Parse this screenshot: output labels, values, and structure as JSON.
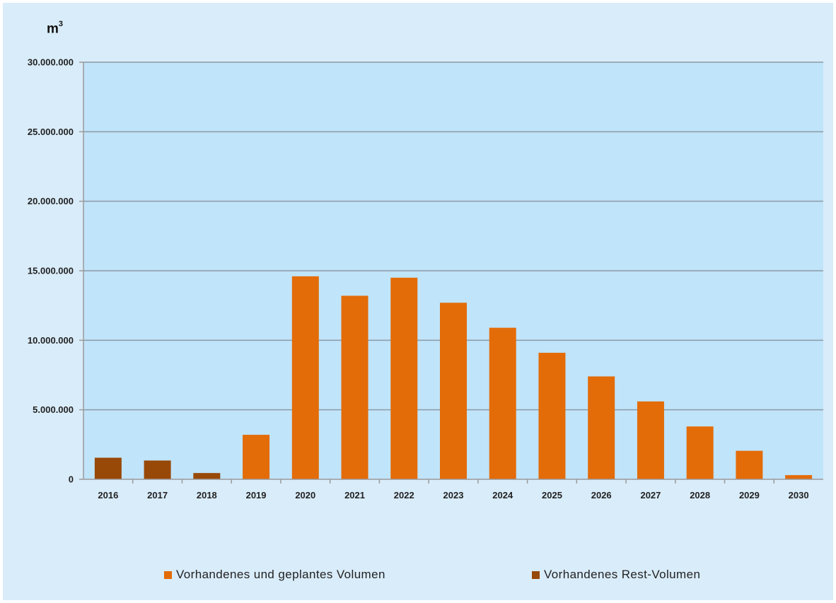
{
  "chart_data": {
    "type": "bar",
    "ylabel": "m",
    "ylabel_superscript": "3",
    "ylim": [
      0,
      30000000
    ],
    "yticks": [
      0,
      5000000,
      10000000,
      15000000,
      20000000,
      25000000,
      30000000
    ],
    "ytick_labels": [
      "0",
      "5.000.000",
      "10.000.000",
      "15.000.000",
      "20.000.000",
      "25.000.000",
      "30.000.000"
    ],
    "categories": [
      "2016",
      "2017",
      "2018",
      "2019",
      "2020",
      "2021",
      "2022",
      "2023",
      "2024",
      "2025",
      "2026",
      "2027",
      "2028",
      "2029",
      "2030"
    ],
    "grid": true,
    "legend_position": "bottom",
    "series": [
      {
        "name": "Vorhandenes und geplantes Volumen",
        "color": "#e36c09",
        "values": [
          null,
          null,
          null,
          3200000,
          14600000,
          13200000,
          14500000,
          12700000,
          10900000,
          9100000,
          7400000,
          5600000,
          3800000,
          2050000,
          300000
        ]
      },
      {
        "name": "Vorhandenes Rest-Volumen",
        "color": "#984807",
        "values": [
          1550000,
          1350000,
          450000,
          null,
          null,
          null,
          null,
          null,
          null,
          null,
          null,
          null,
          null,
          null,
          null
        ]
      }
    ]
  }
}
